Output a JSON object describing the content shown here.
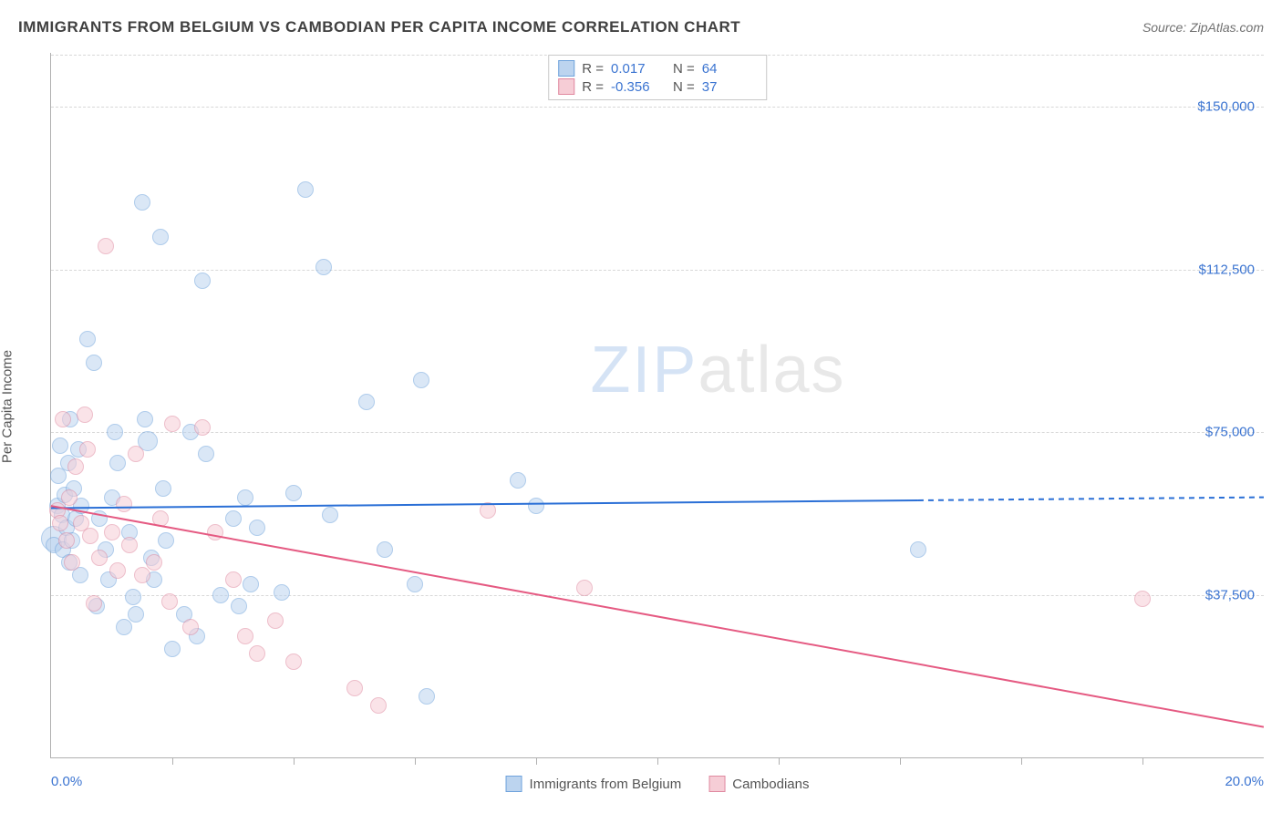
{
  "header": {
    "title": "IMMIGRANTS FROM BELGIUM VS CAMBODIAN PER CAPITA INCOME CORRELATION CHART",
    "source_prefix": "Source: ",
    "source_name": "ZipAtlas.com"
  },
  "watermark": {
    "part1": "ZIP",
    "part2": "atlas"
  },
  "chart": {
    "type": "scatter",
    "y_label": "Per Capita Income",
    "x_min": 0.0,
    "x_max": 20.0,
    "y_min": 0,
    "y_max": 162500,
    "y_ticks": [
      {
        "value": 37500,
        "label": "$37,500"
      },
      {
        "value": 75000,
        "label": "$75,000"
      },
      {
        "value": 112500,
        "label": "$112,500"
      },
      {
        "value": 150000,
        "label": "$150,000"
      }
    ],
    "y_grid_extra_top": 162000,
    "x_ticks_at": [
      2,
      4,
      6,
      8,
      10,
      12,
      14,
      16,
      18
    ],
    "x_axis_labels": {
      "left": "0.0%",
      "right": "20.0%"
    },
    "background_color": "#ffffff",
    "grid_color": "#d8d8d8",
    "axis_color": "#b0b0b0",
    "title_fontsize": 17,
    "label_fontsize": 15,
    "tick_fontsize": 15,
    "tick_color": "#3b74d1"
  },
  "series": [
    {
      "key": "belgium",
      "label": "Immigrants from Belgium",
      "fill": "#bcd4ef",
      "stroke": "#6fa3dc",
      "fill_opacity": 0.55,
      "marker_radius": 9,
      "r_value": "0.017",
      "n_value": "64",
      "regression": {
        "x1": 0.0,
        "y1": 57500,
        "x2": 20.0,
        "y2": 60000,
        "solid_until_x": 14.3,
        "color": "#2a6fd6",
        "width": 2
      },
      "points": [
        [
          0.05,
          50500,
          14
        ],
        [
          0.05,
          49000,
          9
        ],
        [
          0.1,
          58000,
          9
        ],
        [
          0.12,
          65000,
          9
        ],
        [
          0.15,
          72000,
          9
        ],
        [
          0.18,
          56000,
          9
        ],
        [
          0.2,
          48000,
          9
        ],
        [
          0.22,
          60500,
          9
        ],
        [
          0.25,
          53000,
          9
        ],
        [
          0.28,
          68000,
          9
        ],
        [
          0.3,
          45000,
          9
        ],
        [
          0.32,
          78000,
          9
        ],
        [
          0.35,
          50000,
          9
        ],
        [
          0.38,
          62000,
          9
        ],
        [
          0.4,
          55000,
          9
        ],
        [
          0.45,
          71000,
          9
        ],
        [
          0.48,
          42000,
          9
        ],
        [
          0.5,
          58000,
          9
        ],
        [
          0.6,
          96500,
          9
        ],
        [
          0.7,
          91000,
          9
        ],
        [
          0.75,
          35000,
          9
        ],
        [
          0.8,
          55000,
          9
        ],
        [
          0.9,
          48000,
          9
        ],
        [
          0.95,
          41000,
          9
        ],
        [
          1.0,
          60000,
          9
        ],
        [
          1.05,
          75000,
          9
        ],
        [
          1.1,
          68000,
          9
        ],
        [
          1.2,
          30000,
          9
        ],
        [
          1.3,
          52000,
          9
        ],
        [
          1.35,
          37000,
          9
        ],
        [
          1.4,
          33000,
          9
        ],
        [
          1.5,
          128000,
          9
        ],
        [
          1.55,
          78000,
          9
        ],
        [
          1.6,
          73000,
          11
        ],
        [
          1.65,
          46000,
          9
        ],
        [
          1.7,
          41000,
          9
        ],
        [
          1.8,
          120000,
          9
        ],
        [
          1.85,
          62000,
          9
        ],
        [
          1.9,
          50000,
          9
        ],
        [
          2.0,
          25000,
          9
        ],
        [
          2.2,
          33000,
          9
        ],
        [
          2.3,
          75000,
          9
        ],
        [
          2.4,
          28000,
          9
        ],
        [
          2.5,
          110000,
          9
        ],
        [
          2.55,
          70000,
          9
        ],
        [
          2.8,
          37500,
          9
        ],
        [
          3.0,
          55000,
          9
        ],
        [
          3.1,
          35000,
          9
        ],
        [
          3.2,
          60000,
          9
        ],
        [
          3.3,
          40000,
          9
        ],
        [
          3.4,
          53000,
          9
        ],
        [
          3.8,
          38000,
          9
        ],
        [
          4.0,
          61000,
          9
        ],
        [
          4.2,
          131000,
          9
        ],
        [
          4.5,
          113000,
          9
        ],
        [
          4.6,
          56000,
          9
        ],
        [
          5.2,
          82000,
          9
        ],
        [
          5.5,
          48000,
          9
        ],
        [
          6.0,
          40000,
          9
        ],
        [
          6.1,
          87000,
          9
        ],
        [
          6.2,
          14000,
          9
        ],
        [
          7.7,
          64000,
          9
        ],
        [
          8.0,
          58000,
          9
        ],
        [
          14.3,
          48000,
          9
        ]
      ]
    },
    {
      "key": "cambodian",
      "label": "Cambodians",
      "fill": "#f6cdd6",
      "stroke": "#e089a0",
      "fill_opacity": 0.55,
      "marker_radius": 9,
      "r_value": "-0.356",
      "n_value": "37",
      "regression": {
        "x1": 0.0,
        "y1": 58000,
        "x2": 20.0,
        "y2": 7000,
        "solid_until_x": 20.0,
        "color": "#e55a82",
        "width": 2
      },
      "points": [
        [
          0.1,
          57000,
          9
        ],
        [
          0.15,
          54000,
          9
        ],
        [
          0.2,
          78000,
          9
        ],
        [
          0.25,
          50000,
          9
        ],
        [
          0.3,
          60000,
          9
        ],
        [
          0.35,
          45000,
          9
        ],
        [
          0.4,
          67000,
          9
        ],
        [
          0.5,
          54000,
          9
        ],
        [
          0.55,
          79000,
          9
        ],
        [
          0.6,
          71000,
          9
        ],
        [
          0.65,
          51000,
          9
        ],
        [
          0.7,
          35500,
          9
        ],
        [
          0.8,
          46000,
          9
        ],
        [
          0.9,
          118000,
          9
        ],
        [
          1.0,
          52000,
          9
        ],
        [
          1.1,
          43000,
          9
        ],
        [
          1.2,
          58500,
          9
        ],
        [
          1.3,
          49000,
          9
        ],
        [
          1.4,
          70000,
          9
        ],
        [
          1.5,
          42000,
          9
        ],
        [
          1.7,
          45000,
          9
        ],
        [
          1.8,
          55000,
          9
        ],
        [
          1.95,
          36000,
          9
        ],
        [
          2.0,
          77000,
          9
        ],
        [
          2.3,
          30000,
          9
        ],
        [
          2.5,
          76000,
          9
        ],
        [
          2.7,
          52000,
          9
        ],
        [
          3.0,
          41000,
          9
        ],
        [
          3.2,
          28000,
          9
        ],
        [
          3.4,
          24000,
          9
        ],
        [
          3.7,
          31500,
          9
        ],
        [
          4.0,
          22000,
          9
        ],
        [
          5.0,
          16000,
          9
        ],
        [
          5.4,
          12000,
          9
        ],
        [
          7.2,
          57000,
          9
        ],
        [
          8.8,
          39000,
          9
        ],
        [
          18.0,
          36500,
          9
        ]
      ]
    }
  ],
  "labels": {
    "r_label": "R =",
    "n_label": "N ="
  }
}
